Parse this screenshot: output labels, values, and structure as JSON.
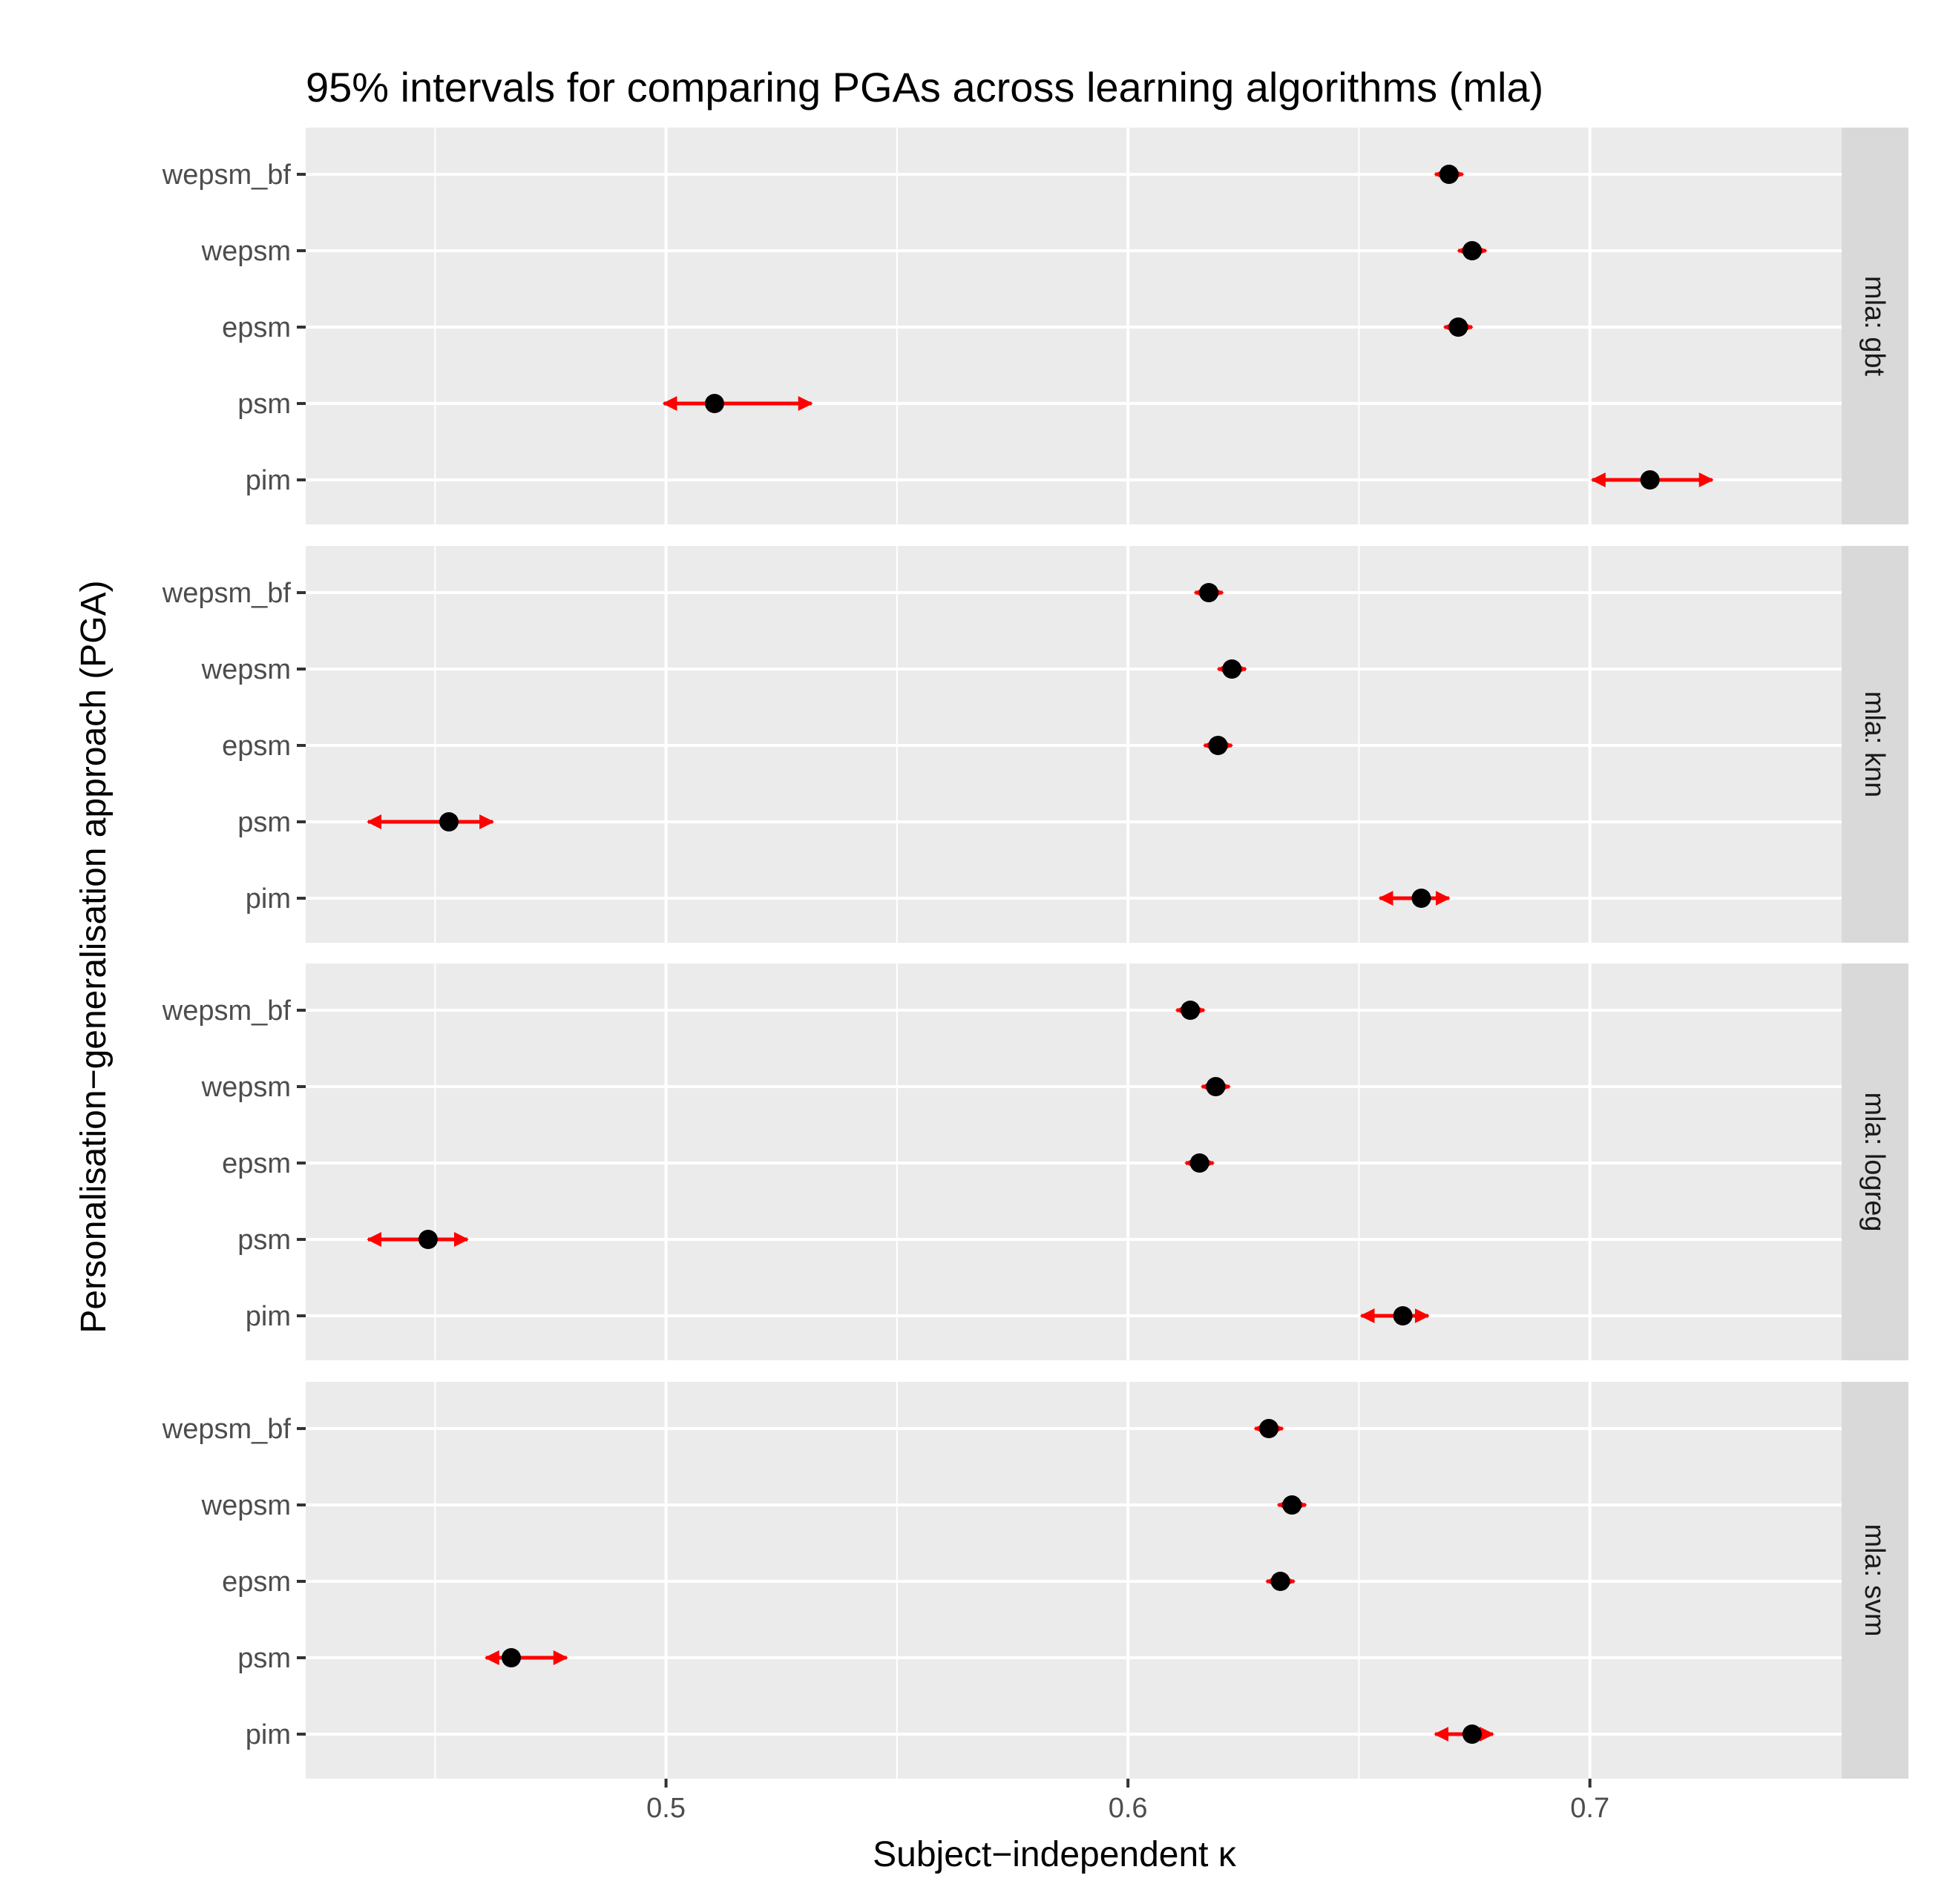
{
  "chart_data": {
    "type": "interval-dotplot",
    "title": "95% intervals for comparing PGAs across learning algorithms (mla)",
    "xlabel": "Subject−independent κ",
    "ylabel": "Personalisation−generalisation approach (PGA)",
    "xlim": [
      0.422,
      0.7545
    ],
    "x_ticks": [
      0.5,
      0.6,
      0.7
    ],
    "x_tick_labels": [
      "0.5",
      "0.6",
      "0.7"
    ],
    "x_minor": [
      0.45,
      0.55,
      0.65
    ],
    "categories": [
      "wepsm_bf",
      "wepsm",
      "epsm",
      "psm",
      "pim"
    ],
    "colors": {
      "panel_bg": "#ebebeb",
      "grid": "#ffffff",
      "strip_bg": "#d9d9d9",
      "interval": "#ff0000",
      "point": "#000000"
    },
    "facets": [
      {
        "strip_label": "mla: gbt",
        "points": [
          {
            "pga": "wepsm_bf",
            "estimate": 0.6695,
            "lower": 0.6665,
            "upper": 0.6725
          },
          {
            "pga": "wepsm",
            "estimate": 0.6745,
            "lower": 0.6715,
            "upper": 0.6775
          },
          {
            "pga": "epsm",
            "estimate": 0.6715,
            "lower": 0.6685,
            "upper": 0.6745
          },
          {
            "pga": "psm",
            "estimate": 0.5105,
            "lower": 0.4995,
            "upper": 0.5315
          },
          {
            "pga": "pim",
            "estimate": 0.713,
            "lower": 0.7005,
            "upper": 0.7265
          }
        ]
      },
      {
        "strip_label": "mla: knn",
        "points": [
          {
            "pga": "wepsm_bf",
            "estimate": 0.6175,
            "lower": 0.6145,
            "upper": 0.6205
          },
          {
            "pga": "wepsm",
            "estimate": 0.6225,
            "lower": 0.6195,
            "upper": 0.6255
          },
          {
            "pga": "epsm",
            "estimate": 0.6195,
            "lower": 0.6165,
            "upper": 0.6225
          },
          {
            "pga": "psm",
            "estimate": 0.453,
            "lower": 0.4355,
            "upper": 0.4625
          },
          {
            "pga": "pim",
            "estimate": 0.6635,
            "lower": 0.6545,
            "upper": 0.6695
          }
        ]
      },
      {
        "strip_label": "mla: logreg",
        "points": [
          {
            "pga": "wepsm_bf",
            "estimate": 0.6135,
            "lower": 0.6105,
            "upper": 0.6165
          },
          {
            "pga": "wepsm",
            "estimate": 0.619,
            "lower": 0.616,
            "upper": 0.622
          },
          {
            "pga": "epsm",
            "estimate": 0.6155,
            "lower": 0.6125,
            "upper": 0.6185
          },
          {
            "pga": "psm",
            "estimate": 0.4485,
            "lower": 0.4355,
            "upper": 0.457
          },
          {
            "pga": "pim",
            "estimate": 0.6595,
            "lower": 0.6505,
            "upper": 0.665
          }
        ]
      },
      {
        "strip_label": "mla: svm",
        "points": [
          {
            "pga": "wepsm_bf",
            "estimate": 0.6305,
            "lower": 0.6275,
            "upper": 0.6335
          },
          {
            "pga": "wepsm",
            "estimate": 0.6355,
            "lower": 0.6325,
            "upper": 0.6385
          },
          {
            "pga": "epsm",
            "estimate": 0.633,
            "lower": 0.63,
            "upper": 0.636
          },
          {
            "pga": "psm",
            "estimate": 0.4665,
            "lower": 0.461,
            "upper": 0.4785
          },
          {
            "pga": "pim",
            "estimate": 0.6745,
            "lower": 0.6665,
            "upper": 0.679
          }
        ]
      }
    ]
  }
}
